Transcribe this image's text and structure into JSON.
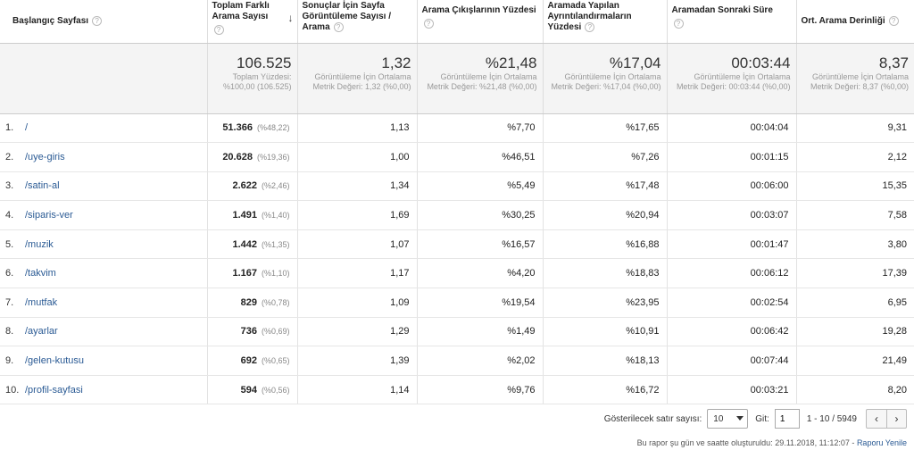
{
  "headers": {
    "page": "Başlangıç Sayfası",
    "total_searches": "Toplam Farklı Arama Sayısı",
    "pageviews_per_search": "Sonuçlar İçin Sayfa Görüntüleme Sayısı / Arama",
    "search_exits": "Arama Çıkışlarının Yüzdesi",
    "refinements": "Aramada Yapılan Ayrıntılandırmaların Yüzdesi",
    "time_after": "Aramadan Sonraki Süre",
    "depth": "Ort. Arama Derinliği",
    "help_glyph": "?",
    "sort_glyph": "↓"
  },
  "totals": {
    "total_searches": {
      "main": "106.525",
      "sub": "Toplam Yüzdesi: %100,00 (106.525)"
    },
    "pageviews_per_search": {
      "main": "1,32",
      "sub": "Görüntüleme İçin Ortalama Metrik Değeri: 1,32 (%0,00)"
    },
    "search_exits": {
      "main": "%21,48",
      "sub": "Görüntüleme İçin Ortalama Metrik Değeri: %21,48 (%0,00)"
    },
    "refinements": {
      "main": "%17,04",
      "sub": "Görüntüleme İçin Ortalama Metrik Değeri: %17,04 (%0,00)"
    },
    "time_after": {
      "main": "00:03:44",
      "sub": "Görüntüleme İçin Ortalama Metrik Değeri: 00:03:44 (%0,00)"
    },
    "depth": {
      "main": "8,37",
      "sub": "Görüntüleme İçin Ortalama Metrik Değeri: 8,37 (%0,00)"
    }
  },
  "rows": [
    {
      "idx": "1.",
      "page": "/",
      "searches": "51.366",
      "share": "(%48,22)",
      "ppv": "1,13",
      "exits": "%7,70",
      "refine": "%17,65",
      "time": "00:04:04",
      "depth": "9,31"
    },
    {
      "idx": "2.",
      "page": "/uye-giris",
      "searches": "20.628",
      "share": "(%19,36)",
      "ppv": "1,00",
      "exits": "%46,51",
      "refine": "%7,26",
      "time": "00:01:15",
      "depth": "2,12"
    },
    {
      "idx": "3.",
      "page": "/satin-al",
      "searches": "2.622",
      "share": "(%2,46)",
      "ppv": "1,34",
      "exits": "%5,49",
      "refine": "%17,48",
      "time": "00:06:00",
      "depth": "15,35"
    },
    {
      "idx": "4.",
      "page": "/siparis-ver",
      "searches": "1.491",
      "share": "(%1,40)",
      "ppv": "1,69",
      "exits": "%30,25",
      "refine": "%20,94",
      "time": "00:03:07",
      "depth": "7,58"
    },
    {
      "idx": "5.",
      "page": "/muzik",
      "searches": "1.442",
      "share": "(%1,35)",
      "ppv": "1,07",
      "exits": "%16,57",
      "refine": "%16,88",
      "time": "00:01:47",
      "depth": "3,80"
    },
    {
      "idx": "6.",
      "page": "/takvim",
      "searches": "1.167",
      "share": "(%1,10)",
      "ppv": "1,17",
      "exits": "%4,20",
      "refine": "%18,83",
      "time": "00:06:12",
      "depth": "17,39"
    },
    {
      "idx": "7.",
      "page": "/mutfak",
      "searches": "829",
      "share": "(%0,78)",
      "ppv": "1,09",
      "exits": "%19,54",
      "refine": "%23,95",
      "time": "00:02:54",
      "depth": "6,95"
    },
    {
      "idx": "8.",
      "page": "/ayarlar",
      "searches": "736",
      "share": "(%0,69)",
      "ppv": "1,29",
      "exits": "%1,49",
      "refine": "%10,91",
      "time": "00:06:42",
      "depth": "19,28"
    },
    {
      "idx": "9.",
      "page": "/gelen-kutusu",
      "searches": "692",
      "share": "(%0,65)",
      "ppv": "1,39",
      "exits": "%2,02",
      "refine": "%18,13",
      "time": "00:07:44",
      "depth": "21,49"
    },
    {
      "idx": "10.",
      "page": "/profil-sayfasi",
      "searches": "594",
      "share": "(%0,56)",
      "ppv": "1,14",
      "exits": "%9,76",
      "refine": "%16,72",
      "time": "00:03:21",
      "depth": "8,20"
    }
  ],
  "pager": {
    "rows_label": "Gösterilecek satır sayısı:",
    "rows_value": "10",
    "go_label": "Git:",
    "go_value": "1",
    "range": "1 - 10 / 5949",
    "prev_glyph": "‹",
    "next_glyph": "›"
  },
  "footer": {
    "text": "Bu rapor şu gün ve saatte oluşturuldu: 29.11.2018, 11:12:07 - ",
    "refresh": "Raporu Yenile"
  }
}
